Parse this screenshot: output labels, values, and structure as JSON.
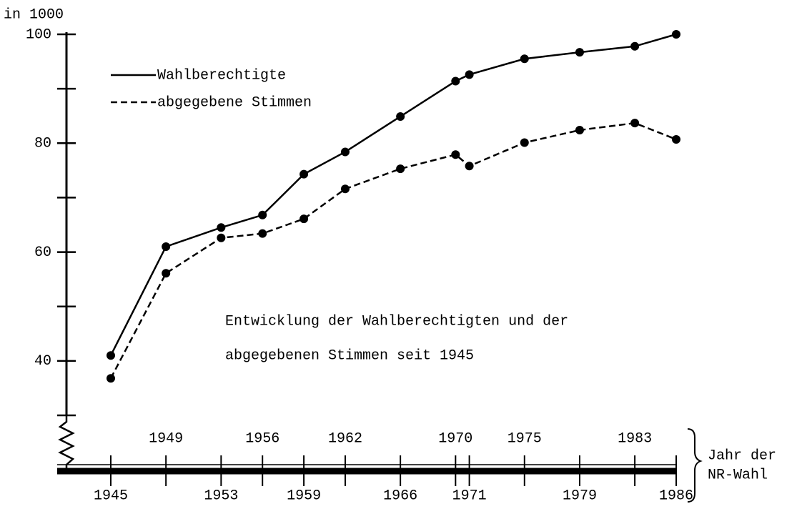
{
  "chart_data": {
    "type": "line",
    "y_label": "in 1000",
    "x_label": [
      "Jahr der",
      "NR-Wahl"
    ],
    "annotation": [
      "Entwicklung der Wahlberechtigten und der",
      "abgegebenen Stimmen seit 1945"
    ],
    "x": [
      1945,
      1949,
      1953,
      1956,
      1959,
      1962,
      1966,
      1970,
      1971,
      1975,
      1979,
      1983,
      1986
    ],
    "series": [
      {
        "name": "Wahlberechtigte",
        "color": "#000000",
        "dash": "solid",
        "values": [
          41,
          61,
          64.5,
          66.8,
          74.3,
          78.4,
          84.9,
          91.4,
          92.6,
          95.5,
          96.7,
          97.8,
          100
        ]
      },
      {
        "name": "abgegebene Stimmen",
        "color": "#000000",
        "dash": "dashed",
        "values": [
          36.8,
          56.1,
          62.6,
          63.4,
          66.1,
          71.6,
          75.3,
          77.9,
          75.8,
          80.1,
          82.4,
          83.7,
          80.7
        ]
      }
    ],
    "xlim": [
      1945,
      1986
    ],
    "xticks": [
      1945,
      1949,
      1953,
      1956,
      1959,
      1962,
      1966,
      1970,
      1971,
      1975,
      1979,
      1983,
      1986
    ],
    "ylim": [
      30,
      100
    ],
    "yticks": [
      40,
      60,
      80,
      100
    ],
    "minor_yticks": [
      30,
      50,
      70,
      90
    ],
    "grid": false
  }
}
